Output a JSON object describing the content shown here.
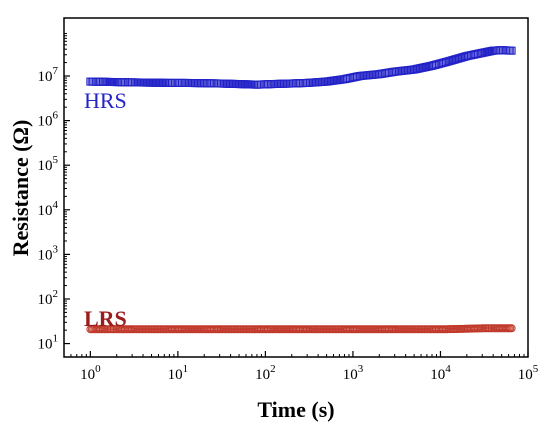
{
  "chart_data": {
    "type": "scatter",
    "title": "",
    "xlabel": "Time (s)",
    "ylabel": "Resistance (Ω)",
    "xscale": "log",
    "yscale": "log",
    "xlim": [
      0.5,
      100000
    ],
    "ylim": [
      5,
      200000000
    ],
    "grid": false,
    "legend": "none",
    "x_ticks": [
      {
        "value": 1,
        "base": "10",
        "exp": "0"
      },
      {
        "value": 10,
        "base": "10",
        "exp": "1"
      },
      {
        "value": 100,
        "base": "10",
        "exp": "2"
      },
      {
        "value": 1000,
        "base": "10",
        "exp": "3"
      },
      {
        "value": 10000,
        "base": "10",
        "exp": "4"
      },
      {
        "value": 100000,
        "base": "10",
        "exp": "5"
      }
    ],
    "y_ticks": [
      {
        "value": 10,
        "base": "10",
        "exp": "1"
      },
      {
        "value": 100,
        "base": "10",
        "exp": "2"
      },
      {
        "value": 1000,
        "base": "10",
        "exp": "3"
      },
      {
        "value": 10000,
        "base": "10",
        "exp": "4"
      },
      {
        "value": 100000,
        "base": "10",
        "exp": "5"
      },
      {
        "value": 1000000,
        "base": "10",
        "exp": "6"
      },
      {
        "value": 10000000,
        "base": "10",
        "exp": "7"
      }
    ],
    "series": [
      {
        "name": "HRS",
        "marker": "square-open",
        "color": "#2323c8",
        "x": [
          1,
          1.5,
          2,
          3,
          5,
          8,
          12,
          20,
          30,
          50,
          80,
          120,
          200,
          300,
          500,
          800,
          1200,
          2000,
          3000,
          5000,
          8000,
          12000,
          20000,
          30000,
          40000,
          50000,
          65000
        ],
        "y": [
          7500000,
          7400000,
          7300000,
          7200000,
          7100000,
          7000000,
          7000000,
          6900000,
          6800000,
          6600000,
          6400000,
          6600000,
          6800000,
          7000000,
          7500000,
          8500000,
          10000000,
          11000000,
          12500000,
          14000000,
          17000000,
          21000000,
          28000000,
          33000000,
          37000000,
          38000000,
          37000000
        ]
      },
      {
        "name": "LRS",
        "marker": "circle-open",
        "color": "#c0392b",
        "x": [
          1,
          1.5,
          2,
          3,
          5,
          8,
          12,
          20,
          30,
          50,
          80,
          120,
          200,
          300,
          500,
          800,
          1200,
          2000,
          3000,
          5000,
          8000,
          12000,
          20000,
          30000,
          40000,
          50000,
          65000
        ],
        "y": [
          21,
          21,
          21,
          21,
          21,
          21,
          21,
          21,
          21,
          21,
          21,
          21,
          21,
          21,
          21,
          21,
          21,
          21,
          21,
          21,
          21,
          21,
          21.5,
          22,
          22,
          22,
          22
        ]
      }
    ]
  }
}
